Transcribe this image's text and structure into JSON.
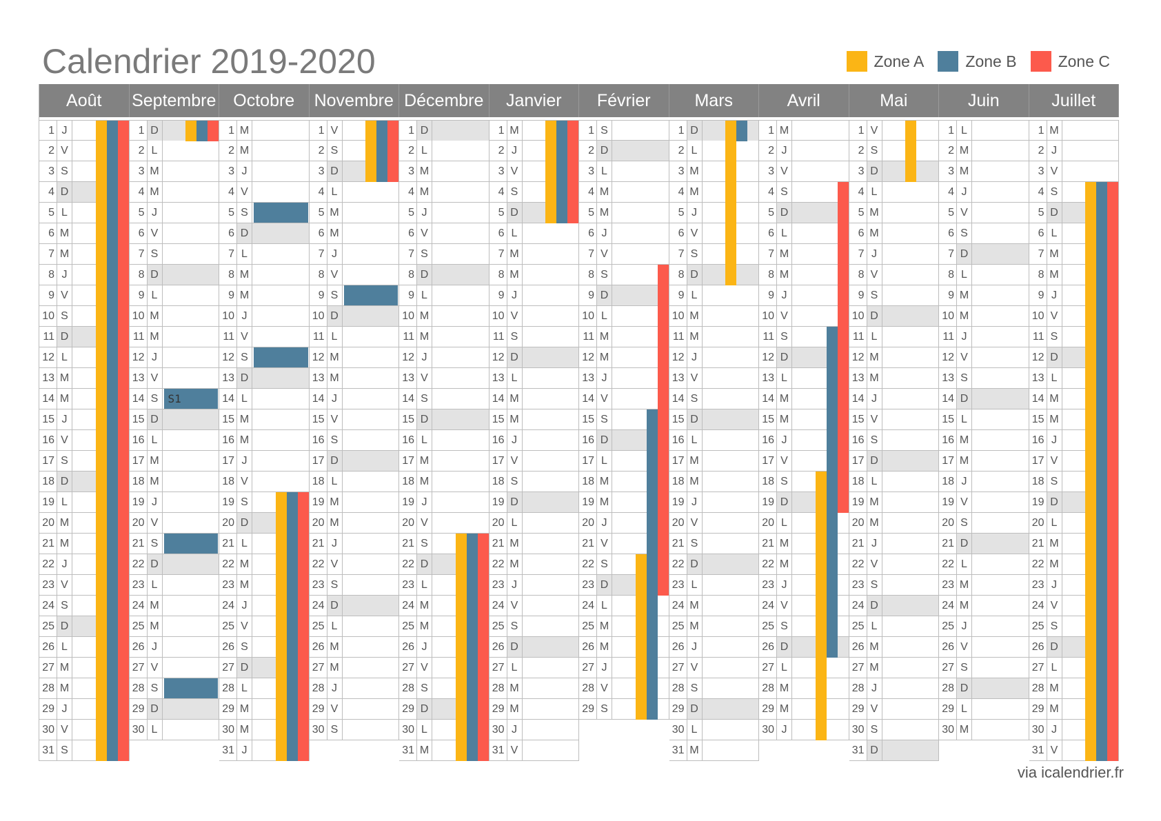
{
  "title": "Calendrier 2019-2020",
  "legend": [
    {
      "label": "Zone A",
      "color": "#fbb515"
    },
    {
      "label": "Zone B",
      "color": "#4f7f9c"
    },
    {
      "label": "Zone C",
      "color": "#fc5a4c"
    }
  ],
  "source": "via icalendrier.fr",
  "event_label": "S1",
  "months": [
    {
      "name": "Août",
      "days": 31,
      "first_weekday": 4,
      "zones": {
        "A": [
          [
            1,
            31
          ]
        ],
        "B": [
          [
            1,
            31
          ]
        ],
        "C": [
          [
            1,
            31
          ]
        ]
      },
      "events": []
    },
    {
      "name": "Septembre",
      "days": 30,
      "first_weekday": 0,
      "zones": {
        "A": [
          [
            1,
            1
          ]
        ],
        "B": [
          [
            1,
            1
          ]
        ],
        "C": [
          [
            1,
            1
          ]
        ]
      },
      "events": [
        {
          "day": 14,
          "label": "S1"
        },
        {
          "day": 21,
          "label": ""
        },
        {
          "day": 28,
          "label": ""
        }
      ]
    },
    {
      "name": "Octobre",
      "days": 31,
      "first_weekday": 2,
      "zones": {
        "A": [
          [
            19,
            31
          ]
        ],
        "B": [
          [
            19,
            31
          ]
        ],
        "C": [
          [
            19,
            31
          ]
        ]
      },
      "events": [
        {
          "day": 5,
          "label": ""
        },
        {
          "day": 12,
          "label": ""
        }
      ]
    },
    {
      "name": "Novembre",
      "days": 30,
      "first_weekday": 5,
      "zones": {
        "A": [
          [
            1,
            3
          ]
        ],
        "B": [
          [
            1,
            3
          ]
        ],
        "C": [
          [
            1,
            3
          ]
        ]
      },
      "events": [
        {
          "day": 9,
          "label": ""
        }
      ]
    },
    {
      "name": "Décembre",
      "days": 31,
      "first_weekday": 0,
      "zones": {
        "A": [
          [
            21,
            31
          ]
        ],
        "B": [
          [
            21,
            31
          ]
        ],
        "C": [
          [
            21,
            31
          ]
        ]
      },
      "events": []
    },
    {
      "name": "Janvier",
      "days": 31,
      "first_weekday": 3,
      "zones": {
        "A": [
          [
            1,
            5
          ]
        ],
        "B": [
          [
            1,
            5
          ]
        ],
        "C": [
          [
            1,
            5
          ]
        ]
      },
      "events": []
    },
    {
      "name": "Février",
      "days": 29,
      "first_weekday": 6,
      "zones": {
        "A": [
          [
            22,
            29
          ]
        ],
        "B": [
          [
            15,
            29
          ]
        ],
        "C": [
          [
            8,
            23
          ]
        ]
      },
      "events": []
    },
    {
      "name": "Mars",
      "days": 31,
      "first_weekday": 0,
      "zones": {
        "A": [
          [
            1,
            8
          ]
        ],
        "B": [
          [
            1,
            1
          ]
        ],
        "C": []
      },
      "events": []
    },
    {
      "name": "Avril",
      "days": 30,
      "first_weekday": 3,
      "zones": {
        "A": [
          [
            18,
            30
          ]
        ],
        "B": [
          [
            11,
            26
          ]
        ],
        "C": [
          [
            4,
            19
          ]
        ]
      },
      "events": []
    },
    {
      "name": "Mai",
      "days": 31,
      "first_weekday": 5,
      "zones": {
        "A": [
          [
            1,
            3
          ]
        ],
        "B": [],
        "C": []
      },
      "events": []
    },
    {
      "name": "Juin",
      "days": 30,
      "first_weekday": 1,
      "zones": {
        "A": [],
        "B": [],
        "C": []
      },
      "events": []
    },
    {
      "name": "Juillet",
      "days": 31,
      "first_weekday": 3,
      "zones": {
        "A": [
          [
            4,
            31
          ]
        ],
        "B": [
          [
            4,
            31
          ]
        ],
        "C": [
          [
            4,
            31
          ]
        ]
      },
      "events": []
    }
  ],
  "weekday_letters": [
    "D",
    "L",
    "M",
    "M",
    "J",
    "V",
    "S"
  ]
}
